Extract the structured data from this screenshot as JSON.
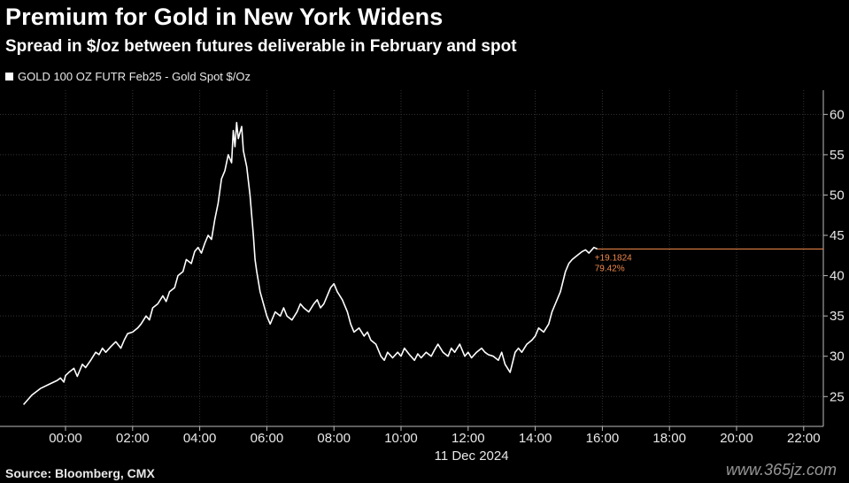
{
  "watermark": "www.365jz.com",
  "chart_data": {
    "type": "line",
    "title": "Premium for Gold in New York Widens",
    "subtitle": "Spread in $/oz between futures deliverable in February and spot",
    "source": "Source: Bloomberg, CMX",
    "legend": {
      "position": "top-left"
    },
    "x_date_label": "11 Dec 2024",
    "xlabel": "",
    "ylabel": "",
    "x_ticks": [
      "00:00",
      "02:00",
      "04:00",
      "06:00",
      "08:00",
      "10:00",
      "12:00",
      "14:00",
      "16:00",
      "18:00",
      "20:00",
      "22:00"
    ],
    "y_ticks": [
      25,
      30,
      35,
      40,
      45,
      50,
      55,
      60
    ],
    "xlim": [
      -1.25,
      23.6
    ],
    "ylim": [
      21.3,
      63.0
    ],
    "grid": true,
    "colors": {
      "series": "#ffffff",
      "annotation": "#f0884a",
      "grid": "#333333"
    },
    "annotations": {
      "last_value": "+19.1824",
      "percent": "79.42%",
      "last_level": 43.3
    },
    "series": [
      {
        "name": "GOLD 100 OZ FUTR Feb25 - Gold Spot $/Oz",
        "x": [
          -1.25,
          -1.0,
          -0.75,
          -0.5,
          -0.25,
          -0.15,
          -0.05,
          0.0,
          0.1,
          0.25,
          0.35,
          0.5,
          0.6,
          0.75,
          0.9,
          1.0,
          1.1,
          1.2,
          1.35,
          1.5,
          1.65,
          1.75,
          1.85,
          2.0,
          2.15,
          2.25,
          2.4,
          2.5,
          2.6,
          2.75,
          2.9,
          3.0,
          3.1,
          3.25,
          3.35,
          3.5,
          3.6,
          3.75,
          3.85,
          3.95,
          4.05,
          4.15,
          4.25,
          4.35,
          4.45,
          4.55,
          4.65,
          4.75,
          4.85,
          4.95,
          5.0,
          5.05,
          5.1,
          5.15,
          5.25,
          5.3,
          5.4,
          5.5,
          5.6,
          5.65,
          5.7,
          5.8,
          5.9,
          6.0,
          6.1,
          6.25,
          6.4,
          6.5,
          6.6,
          6.75,
          6.9,
          7.0,
          7.1,
          7.25,
          7.4,
          7.5,
          7.6,
          7.7,
          7.8,
          7.9,
          8.0,
          8.1,
          8.25,
          8.4,
          8.5,
          8.6,
          8.75,
          8.9,
          9.0,
          9.1,
          9.25,
          9.4,
          9.5,
          9.6,
          9.75,
          9.9,
          10.0,
          10.1,
          10.25,
          10.4,
          10.5,
          10.6,
          10.75,
          10.9,
          11.0,
          11.1,
          11.25,
          11.4,
          11.5,
          11.6,
          11.75,
          11.9,
          12.0,
          12.1,
          12.25,
          12.4,
          12.5,
          12.6,
          12.75,
          12.9,
          13.0,
          13.1,
          13.25,
          13.4,
          13.5,
          13.6,
          13.75,
          13.9,
          14.0,
          14.1,
          14.25,
          14.4,
          14.5,
          14.6,
          14.75,
          14.9,
          15.0,
          15.1,
          15.25,
          15.4,
          15.5,
          15.6,
          15.75,
          15.85
        ],
        "values": [
          24.0,
          25.2,
          26.0,
          26.5,
          27.0,
          27.3,
          26.8,
          27.6,
          28.0,
          28.5,
          27.5,
          29.0,
          28.6,
          29.5,
          30.5,
          30.2,
          31.0,
          30.5,
          31.2,
          31.8,
          31.0,
          32.0,
          32.8,
          33.0,
          33.5,
          34.0,
          35.0,
          34.5,
          36.0,
          36.5,
          37.5,
          36.8,
          38.0,
          38.5,
          40.0,
          40.5,
          42.0,
          41.5,
          43.0,
          43.5,
          42.8,
          44.0,
          45.0,
          44.5,
          47.0,
          49.0,
          52.0,
          53.0,
          55.0,
          54.0,
          58.0,
          56.0,
          59.0,
          57.0,
          58.5,
          55.5,
          53.5,
          50.0,
          45.0,
          42.0,
          40.5,
          38.0,
          36.5,
          35.0,
          34.0,
          35.5,
          35.0,
          36.0,
          35.0,
          34.5,
          35.5,
          36.5,
          36.0,
          35.5,
          36.5,
          37.0,
          36.0,
          36.5,
          37.5,
          38.5,
          39.0,
          38.0,
          37.0,
          35.5,
          34.0,
          33.0,
          33.5,
          32.5,
          33.0,
          32.0,
          31.5,
          30.0,
          29.5,
          30.5,
          29.8,
          30.5,
          30.0,
          31.0,
          30.2,
          29.5,
          30.3,
          29.8,
          30.5,
          30.0,
          30.8,
          31.5,
          30.5,
          30.0,
          31.0,
          30.5,
          31.5,
          30.0,
          30.5,
          29.8,
          30.5,
          31.0,
          30.5,
          30.2,
          30.0,
          29.5,
          30.5,
          29.0,
          28.0,
          30.5,
          31.0,
          30.5,
          31.5,
          32.0,
          32.5,
          33.5,
          33.0,
          34.0,
          35.5,
          36.5,
          38.0,
          40.5,
          41.5,
          42.0,
          42.5,
          43.0,
          43.2,
          42.8,
          43.5,
          43.3
        ]
      }
    ]
  }
}
